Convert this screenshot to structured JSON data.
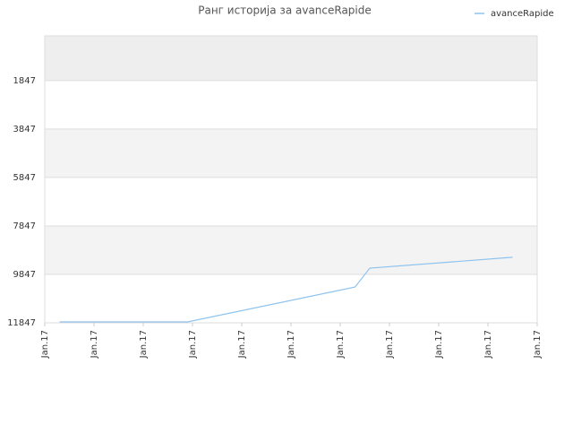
{
  "chart_data": {
    "type": "line",
    "title": "Ранг историја за avanceRapide",
    "x": [
      0.3,
      2.9,
      6.3,
      6.6,
      9.5
    ],
    "series": [
      {
        "name": "avanceRapide",
        "color": "#8ec3ee",
        "values": [
          11810,
          11810,
          10370,
          9590,
          9140
        ]
      }
    ],
    "xlim": [
      0,
      10
    ],
    "xticks": [
      {
        "value": 0,
        "label": "Jan.17"
      },
      {
        "value": 1,
        "label": "Jan.17"
      },
      {
        "value": 2,
        "label": "Jan.17"
      },
      {
        "value": 3,
        "label": "Jan.17"
      },
      {
        "value": 4,
        "label": "Jan.17"
      },
      {
        "value": 5,
        "label": "Jan.17"
      },
      {
        "value": 6,
        "label": "Jan.17"
      },
      {
        "value": 7,
        "label": "Jan.17"
      },
      {
        "value": 8,
        "label": "Jan.17"
      },
      {
        "value": 9,
        "label": "Jan.17"
      },
      {
        "value": 10,
        "label": "Jan.17"
      }
    ],
    "ylim": [
      11847,
      0
    ],
    "yticks": [
      1847,
      3847,
      5847,
      7847,
      9847,
      11847
    ],
    "grid": true,
    "legend": "top-right"
  }
}
